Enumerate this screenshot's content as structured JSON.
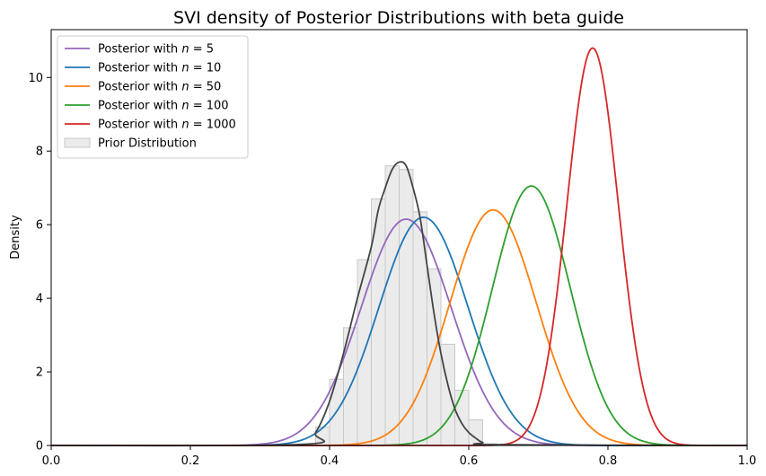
{
  "chart_data": {
    "type": "line",
    "title": "SVI density of Posterior Distributions with beta guide",
    "xlabel": "",
    "ylabel": "Density",
    "xlim": [
      0.0,
      1.0
    ],
    "ylim": [
      0,
      11.3
    ],
    "x_ticks": [
      "0.0",
      "0.2",
      "0.4",
      "0.6",
      "0.8",
      "1.0"
    ],
    "y_ticks": [
      "0",
      "2",
      "4",
      "6",
      "8",
      "10"
    ],
    "legend_position": "top-left",
    "grid": false,
    "series": [
      {
        "name": "Posterior with n = 5",
        "label_prefix": "Posterior with ",
        "label_var": "n",
        "label_eq": "= 5",
        "color": "#9467bd",
        "mean": 0.51,
        "sd": 0.065,
        "peak": 6.15
      },
      {
        "name": "Posterior with n = 10",
        "label_prefix": "Posterior with ",
        "label_var": "n",
        "label_eq": "= 10",
        "color": "#1f77b4",
        "mean": 0.535,
        "sd": 0.064,
        "peak": 6.2
      },
      {
        "name": "Posterior with n = 50",
        "label_prefix": "Posterior with ",
        "label_var": "n",
        "label_eq": "= 50",
        "color": "#ff7f0e",
        "mean": 0.635,
        "sd": 0.062,
        "peak": 6.4
      },
      {
        "name": "Posterior with n = 100",
        "label_prefix": "Posterior with ",
        "label_var": "n",
        "label_eq": "= 100",
        "color": "#2ca02c",
        "mean": 0.69,
        "sd": 0.056,
        "peak": 7.05
      },
      {
        "name": "Posterior with n = 1000",
        "label_prefix": "Posterior with ",
        "label_var": "n",
        "label_eq": "= 1000",
        "color": "#d62728",
        "mean": 0.778,
        "sd": 0.037,
        "peak": 10.8
      }
    ],
    "prior_kde": {
      "color": "#444444",
      "points": [
        [
          0.0,
          0
        ],
        [
          0.36,
          0.03
        ],
        [
          0.38,
          0.35
        ],
        [
          0.4,
          1.2
        ],
        [
          0.42,
          2.5
        ],
        [
          0.44,
          4.0
        ],
        [
          0.46,
          5.4
        ],
        [
          0.47,
          6.4
        ],
        [
          0.48,
          7.0
        ],
        [
          0.49,
          7.5
        ],
        [
          0.5,
          7.7
        ],
        [
          0.51,
          7.6
        ],
        [
          0.52,
          7.0
        ],
        [
          0.53,
          6.2
        ],
        [
          0.54,
          4.9
        ],
        [
          0.55,
          3.6
        ],
        [
          0.56,
          2.5
        ],
        [
          0.57,
          1.65
        ],
        [
          0.58,
          1.0
        ],
        [
          0.59,
          0.6
        ],
        [
          0.6,
          0.35
        ],
        [
          0.61,
          0.2
        ],
        [
          0.62,
          0.08
        ],
        [
          0.64,
          0.02
        ],
        [
          1.0,
          0
        ]
      ]
    },
    "prior_histogram": {
      "name": "Prior Distribution",
      "color": "#d3d3d3",
      "bin_width": 0.02,
      "bins": [
        {
          "x0": 0.38,
          "height": 0.5
        },
        {
          "x0": 0.4,
          "height": 1.8
        },
        {
          "x0": 0.42,
          "height": 3.2
        },
        {
          "x0": 0.44,
          "height": 5.05
        },
        {
          "x0": 0.46,
          "height": 6.7
        },
        {
          "x0": 0.48,
          "height": 7.6
        },
        {
          "x0": 0.5,
          "height": 7.5
        },
        {
          "x0": 0.52,
          "height": 6.35
        },
        {
          "x0": 0.54,
          "height": 4.8
        },
        {
          "x0": 0.56,
          "height": 2.75
        },
        {
          "x0": 0.58,
          "height": 1.5
        },
        {
          "x0": 0.6,
          "height": 0.7
        },
        {
          "x0": 0.62,
          "height": 0.05
        }
      ]
    }
  }
}
